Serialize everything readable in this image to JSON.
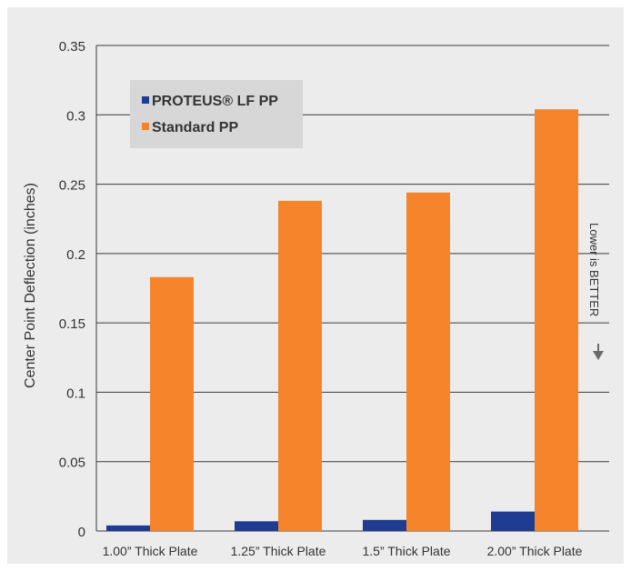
{
  "chart_data": {
    "type": "bar",
    "title": "",
    "xlabel": "",
    "ylabel": "Center Point Deflection (inches)",
    "ylim": [
      0,
      0.35
    ],
    "yticks": [
      "0",
      "0.05",
      "0.1",
      "0.15",
      "0.2",
      "0.25",
      "0.3",
      "0.35"
    ],
    "categories": [
      "1.00” Thick Plate",
      "1.25” Thick Plate",
      "1.5” Thick Plate",
      "2.00” Thick Plate"
    ],
    "series": [
      {
        "name": "PROTEUS® LF PP",
        "color": "#1f3c93",
        "values": [
          0.004,
          0.007,
          0.008,
          0.014
        ]
      },
      {
        "name": "Standard PP",
        "color": "#f5842a",
        "values": [
          0.183,
          0.238,
          0.244,
          0.304
        ]
      }
    ],
    "grid": true,
    "legend": "top-left",
    "annotation": {
      "text": "Lower is BETTER",
      "icon": "down-arrow-icon"
    }
  }
}
